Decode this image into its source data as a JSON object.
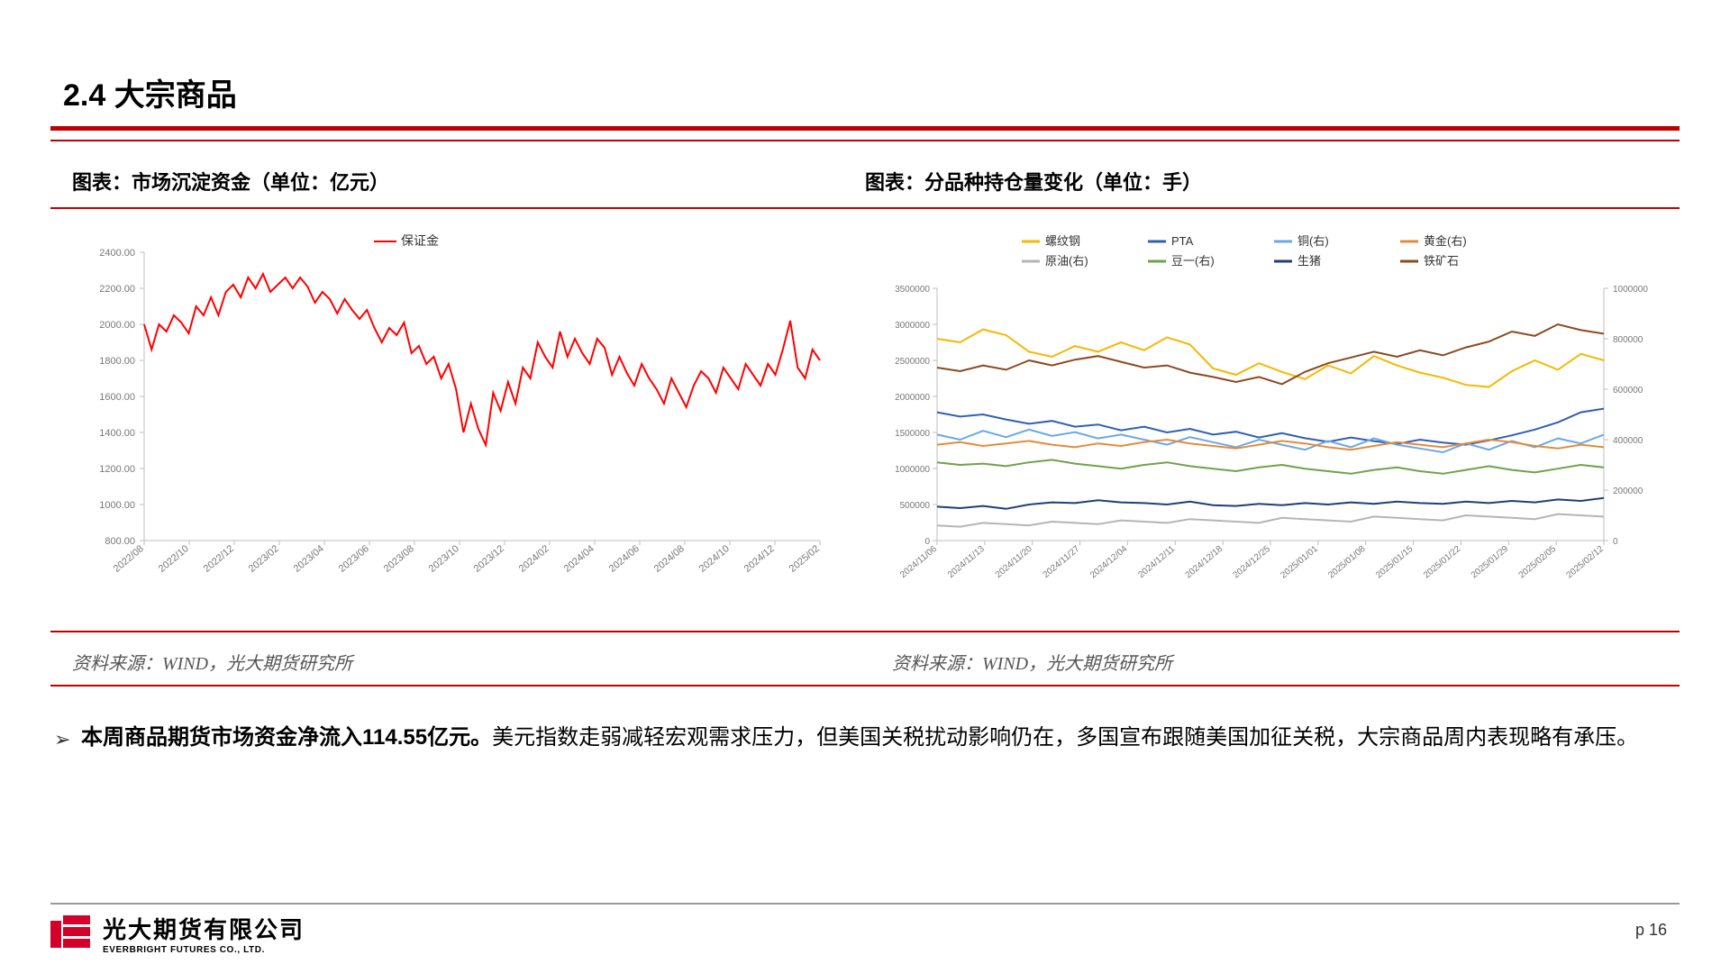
{
  "title": "2.4 大宗商品",
  "divider_color": "#c00000",
  "chart_left": {
    "caption": "图表：市场沉淀资金（单位：亿元）",
    "source": "资料来源：WIND，光大期货研究所",
    "legend": [
      {
        "label": "保证金",
        "color": "#ff0000"
      }
    ],
    "ylim": [
      800,
      2400
    ],
    "ytick_step": 200,
    "x_labels": [
      "2022/08",
      "2022/10",
      "2022/12",
      "2023/02",
      "2023/04",
      "2023/06",
      "2023/08",
      "2023/10",
      "2023/12",
      "2024/02",
      "2024/04",
      "2024/06",
      "2024/08",
      "2024/10",
      "2024/12",
      "2025/02"
    ],
    "series": [
      {
        "key": "margin",
        "color": "#ff0000",
        "width": 2,
        "values": [
          2000,
          1860,
          2000,
          1960,
          2050,
          2010,
          1950,
          2100,
          2050,
          2150,
          2050,
          2180,
          2220,
          2150,
          2260,
          2200,
          2280,
          2180,
          2220,
          2260,
          2200,
          2260,
          2210,
          2120,
          2180,
          2140,
          2060,
          2140,
          2080,
          2030,
          2080,
          1980,
          1900,
          1980,
          1940,
          2010,
          1840,
          1880,
          1780,
          1820,
          1700,
          1780,
          1640,
          1400,
          1560,
          1420,
          1330,
          1620,
          1520,
          1680,
          1560,
          1760,
          1700,
          1900,
          1820,
          1760,
          1960,
          1820,
          1920,
          1840,
          1780,
          1920,
          1870,
          1720,
          1820,
          1730,
          1660,
          1780,
          1700,
          1640,
          1560,
          1700,
          1620,
          1540,
          1660,
          1740,
          1700,
          1620,
          1760,
          1700,
          1640,
          1780,
          1720,
          1660,
          1780,
          1720,
          1860,
          2020,
          1760,
          1700,
          1860,
          1800
        ]
      }
    ],
    "axis_color": "#bfbfbf",
    "tick_fontsize": 11,
    "tick_color": "#777"
  },
  "chart_right": {
    "caption": "图表：分品种持仓量变化（单位：手）",
    "source": "资料来源：WIND，光大期货研究所",
    "legend": [
      {
        "label": "螺纹钢",
        "color": "#f5b800"
      },
      {
        "label": "PTA",
        "color": "#2f5fb5"
      },
      {
        "label": "铜(右)",
        "color": "#6aa9e6"
      },
      {
        "label": "黄金(右)",
        "color": "#e58b3a"
      },
      {
        "label": "原油(右)",
        "color": "#b5b5b5"
      },
      {
        "label": "豆一(右)",
        "color": "#6fa24a"
      },
      {
        "label": "生猪",
        "color": "#1f3f77"
      },
      {
        "label": "铁矿石",
        "color": "#8b4a1f"
      }
    ],
    "x_labels": [
      "2024/11/06",
      "2024/11/13",
      "2024/11/20",
      "2024/11/27",
      "2024/12/04",
      "2024/12/11",
      "2024/12/18",
      "2024/12/25",
      "2025/01/01",
      "2025/01/08",
      "2025/01/15",
      "2025/01/22",
      "2025/01/29",
      "2025/02/05",
      "2025/02/12"
    ],
    "ylim_left": [
      0,
      3500000
    ],
    "ytick_left_step": 500000,
    "ylim_right": [
      0,
      1000000
    ],
    "ytick_right_step": 200000,
    "series_left": [
      {
        "key": "rebar",
        "color": "#f5b800",
        "width": 2,
        "values": [
          2800000,
          2750000,
          2930000,
          2850000,
          2620000,
          2550000,
          2700000,
          2620000,
          2750000,
          2640000,
          2820000,
          2720000,
          2390000,
          2300000,
          2460000,
          2340000,
          2240000,
          2430000,
          2320000,
          2560000,
          2430000,
          2330000,
          2260000,
          2160000,
          2130000,
          2350000,
          2500000,
          2370000,
          2590000,
          2500000
        ]
      },
      {
        "key": "pta",
        "color": "#2f5fb5",
        "width": 2,
        "values": [
          1780000,
          1720000,
          1750000,
          1680000,
          1620000,
          1660000,
          1580000,
          1610000,
          1530000,
          1580000,
          1500000,
          1550000,
          1470000,
          1510000,
          1430000,
          1490000,
          1420000,
          1370000,
          1430000,
          1380000,
          1340000,
          1400000,
          1360000,
          1330000,
          1390000,
          1460000,
          1540000,
          1640000,
          1780000,
          1830000
        ]
      },
      {
        "key": "hog",
        "color": "#1f3f77",
        "width": 2,
        "values": [
          470000,
          450000,
          480000,
          440000,
          500000,
          530000,
          520000,
          560000,
          530000,
          520000,
          500000,
          540000,
          490000,
          480000,
          510000,
          490000,
          520000,
          500000,
          530000,
          510000,
          540000,
          520000,
          510000,
          540000,
          520000,
          550000,
          530000,
          570000,
          550000,
          590000
        ]
      },
      {
        "key": "ironore",
        "color": "#8b4a1f",
        "width": 2,
        "values": [
          2400000,
          2350000,
          2430000,
          2370000,
          2500000,
          2430000,
          2510000,
          2560000,
          2480000,
          2400000,
          2430000,
          2330000,
          2270000,
          2200000,
          2270000,
          2170000,
          2340000,
          2460000,
          2540000,
          2620000,
          2550000,
          2640000,
          2570000,
          2680000,
          2760000,
          2900000,
          2840000,
          3000000,
          2920000,
          2870000
        ]
      }
    ],
    "series_right": [
      {
        "key": "copper",
        "color": "#6aa9e6",
        "width": 2,
        "values": [
          420000,
          400000,
          435000,
          410000,
          440000,
          415000,
          430000,
          405000,
          420000,
          400000,
          380000,
          410000,
          390000,
          370000,
          400000,
          380000,
          360000,
          395000,
          370000,
          405000,
          380000,
          365000,
          350000,
          385000,
          360000,
          395000,
          370000,
          405000,
          385000,
          420000
        ]
      },
      {
        "key": "gold",
        "color": "#e58b3a",
        "width": 2,
        "values": [
          380000,
          390000,
          375000,
          385000,
          395000,
          380000,
          370000,
          385000,
          375000,
          390000,
          400000,
          385000,
          375000,
          365000,
          380000,
          395000,
          385000,
          370000,
          360000,
          375000,
          390000,
          380000,
          370000,
          385000,
          400000,
          390000,
          375000,
          365000,
          380000,
          370000
        ]
      },
      {
        "key": "crude",
        "color": "#b5b5b5",
        "width": 2,
        "values": [
          60000,
          55000,
          70000,
          65000,
          60000,
          75000,
          70000,
          65000,
          80000,
          75000,
          70000,
          85000,
          80000,
          75000,
          70000,
          90000,
          85000,
          80000,
          75000,
          95000,
          90000,
          85000,
          80000,
          100000,
          95000,
          90000,
          85000,
          105000,
          100000,
          95000
        ]
      },
      {
        "key": "soy",
        "color": "#6fa24a",
        "width": 2,
        "values": [
          310000,
          300000,
          305000,
          295000,
          310000,
          320000,
          305000,
          295000,
          285000,
          300000,
          310000,
          295000,
          285000,
          275000,
          290000,
          300000,
          285000,
          275000,
          265000,
          280000,
          290000,
          275000,
          265000,
          280000,
          295000,
          280000,
          270000,
          285000,
          300000,
          290000
        ]
      }
    ],
    "axis_color": "#bfbfbf",
    "tick_fontsize": 10,
    "tick_color": "#777"
  },
  "bullet": {
    "bold": "本周商品期货市场资金净流入114.55亿元。",
    "rest": "美元指数走弱减轻宏观需求压力，但美国关税扰动影响仍在，多国宣布跟随美国加征关税，大宗商品周内表现略有承压。"
  },
  "footer": {
    "company_cn": "光大期货有限公司",
    "company_en": "EVERBRIGHT FUTURES CO., LTD.",
    "page": "p 16",
    "logo_color": "#d4002a"
  }
}
